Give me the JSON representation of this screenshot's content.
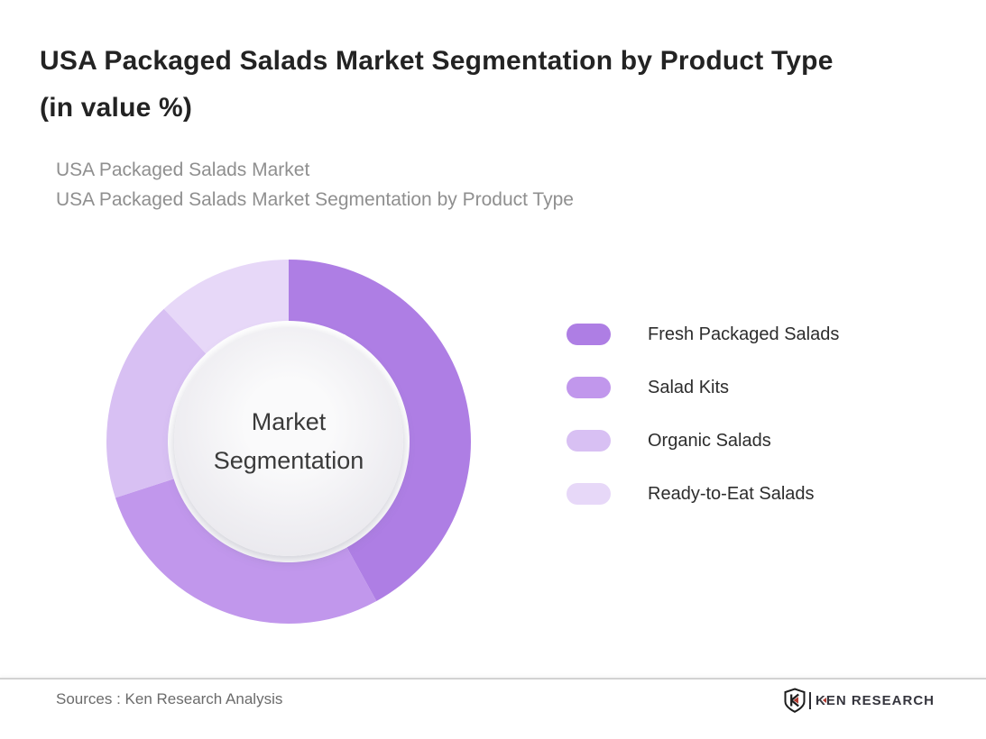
{
  "header": {
    "title_line1": "USA Packaged Salads Market Segmentation by Product Type",
    "title_line2": "(in value %)",
    "subtitle_line1": "USA Packaged Salads Market",
    "subtitle_line2": "USA Packaged Salads Market Segmentation by Product Type"
  },
  "chart_data": {
    "type": "pie",
    "variant": "donut",
    "title": "USA Packaged Salads Market Segmentation by Product Type (in value %)",
    "categories": [
      "Fresh Packaged Salads",
      "Salad Kits",
      "Organic Salads",
      "Ready-to-Eat Salads"
    ],
    "values": [
      42,
      28,
      18,
      12
    ],
    "unit": "% of market value",
    "data_labels_shown": false,
    "colors": [
      "#ae7ee4",
      "#c197ec",
      "#d8c0f3",
      "#e7d8f8"
    ],
    "start_angle_deg": 0,
    "direction": "clockwise",
    "legend_position": "right",
    "center_label_line1": "Market",
    "center_label_line2": "Segmentation"
  },
  "footer": {
    "sources_text": "Sources : Ken Research Analysis",
    "logo_k": "K",
    "logo_rest": "EN RESEARCH"
  }
}
